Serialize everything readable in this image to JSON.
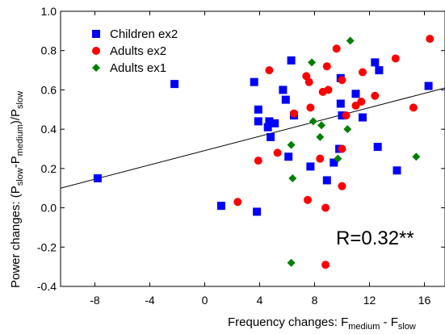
{
  "chart_data": {
    "type": "scatter",
    "xlabel": {
      "main": "Frequency changes: F",
      "sub1": "medium",
      "mid": " - F",
      "sub2": "slow"
    },
    "ylabel": {
      "p1": "Power changes: (P",
      "s1": "slow",
      "p2": "-P",
      "s2": "medium",
      "p3": ")/P",
      "s3": "slow"
    },
    "xlim": [
      -10.5,
      17.5
    ],
    "ylim": [
      -0.4,
      1.0
    ],
    "xticks": [
      "-8",
      "-4",
      "0",
      "4",
      "8",
      "12",
      "16"
    ],
    "xtick_values": [
      -8,
      -4,
      0,
      4,
      8,
      12,
      16
    ],
    "yticks": [
      "-0.4",
      "-0.2",
      "0.0",
      "0.2",
      "0.4",
      "0.6",
      "0.8",
      "1.0"
    ],
    "ytick_values": [
      -0.4,
      -0.2,
      0.0,
      0.2,
      0.4,
      0.6,
      0.8,
      1.0
    ],
    "annotation": "R=0.32**",
    "legend_position": "top-left",
    "regression": {
      "x": [
        -10.5,
        17.5
      ],
      "y": [
        0.1,
        0.61
      ]
    },
    "series": [
      {
        "name": "Children ex2",
        "marker": "square",
        "color": "#0000ff",
        "points": [
          [
            -7.8,
            0.15
          ],
          [
            -2.2,
            0.63
          ],
          [
            1.2,
            0.01
          ],
          [
            3.8,
            -0.02
          ],
          [
            3.6,
            0.64
          ],
          [
            3.9,
            0.5
          ],
          [
            3.9,
            0.44
          ],
          [
            4.6,
            0.41
          ],
          [
            4.7,
            0.44
          ],
          [
            4.8,
            0.36
          ],
          [
            5.1,
            0.43
          ],
          [
            5.7,
            0.6
          ],
          [
            5.9,
            0.55
          ],
          [
            6.1,
            0.26
          ],
          [
            6.3,
            0.75
          ],
          [
            6.5,
            0.47
          ],
          [
            7.7,
            0.21
          ],
          [
            8.9,
            0.14
          ],
          [
            9.4,
            0.23
          ],
          [
            9.8,
            0.3
          ],
          [
            9.9,
            0.53
          ],
          [
            9.9,
            0.66
          ],
          [
            10.0,
            0.47
          ],
          [
            11.0,
            0.58
          ],
          [
            11.5,
            0.46
          ],
          [
            12.4,
            0.74
          ],
          [
            12.6,
            0.31
          ],
          [
            12.7,
            0.7
          ],
          [
            14.0,
            0.19
          ],
          [
            16.3,
            0.62
          ]
        ]
      },
      {
        "name": "Adults ex2",
        "marker": "circle",
        "color": "#ff0000",
        "points": [
          [
            2.4,
            0.03
          ],
          [
            3.9,
            0.24
          ],
          [
            4.7,
            0.7
          ],
          [
            5.3,
            0.28
          ],
          [
            6.5,
            0.48
          ],
          [
            7.4,
            0.67
          ],
          [
            7.5,
            0.04
          ],
          [
            7.6,
            0.64
          ],
          [
            7.7,
            0.51
          ],
          [
            8.4,
            0.25
          ],
          [
            8.6,
            0.59
          ],
          [
            8.8,
            -0.29
          ],
          [
            8.8,
            0.0
          ],
          [
            8.9,
            0.72
          ],
          [
            9.0,
            0.6
          ],
          [
            9.6,
            0.81
          ],
          [
            10.0,
            0.3
          ],
          [
            10.0,
            0.65
          ],
          [
            10.0,
            0.11
          ],
          [
            10.3,
            0.47
          ],
          [
            11.0,
            0.52
          ],
          [
            11.4,
            0.54
          ],
          [
            11.5,
            0.69
          ],
          [
            12.4,
            0.57
          ],
          [
            13.9,
            0.76
          ],
          [
            15.2,
            0.51
          ],
          [
            16.4,
            0.86
          ]
        ]
      },
      {
        "name": "Adults ex1",
        "marker": "diamond",
        "color": "#008000",
        "points": [
          [
            6.3,
            -0.28
          ],
          [
            6.3,
            0.32
          ],
          [
            6.4,
            0.15
          ],
          [
            7.8,
            0.74
          ],
          [
            7.9,
            0.44
          ],
          [
            8.4,
            0.36
          ],
          [
            8.5,
            0.42
          ],
          [
            9.7,
            0.25
          ],
          [
            10.4,
            0.4
          ],
          [
            10.6,
            0.85
          ],
          [
            15.4,
            0.26
          ]
        ]
      }
    ]
  }
}
